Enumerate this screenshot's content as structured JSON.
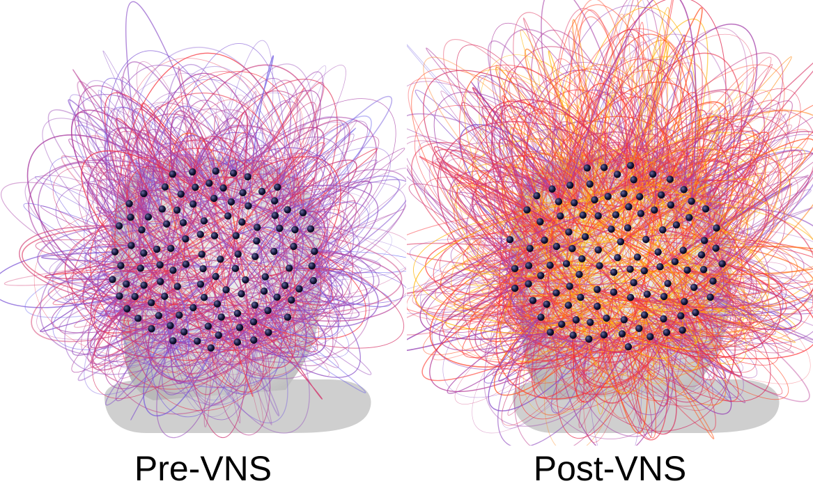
{
  "panels": [
    {
      "caption": "Pre-VNS"
    },
    {
      "caption": "Post-VNS"
    }
  ],
  "colors": {
    "background": "#ffffff",
    "head": "#d8d8d8",
    "electrode": "#141432",
    "connection_low": "#5a6cff",
    "connection_mid": "#b0389a",
    "connection_high": "#ff2a2a",
    "connection_peak": "#ffb400"
  }
}
